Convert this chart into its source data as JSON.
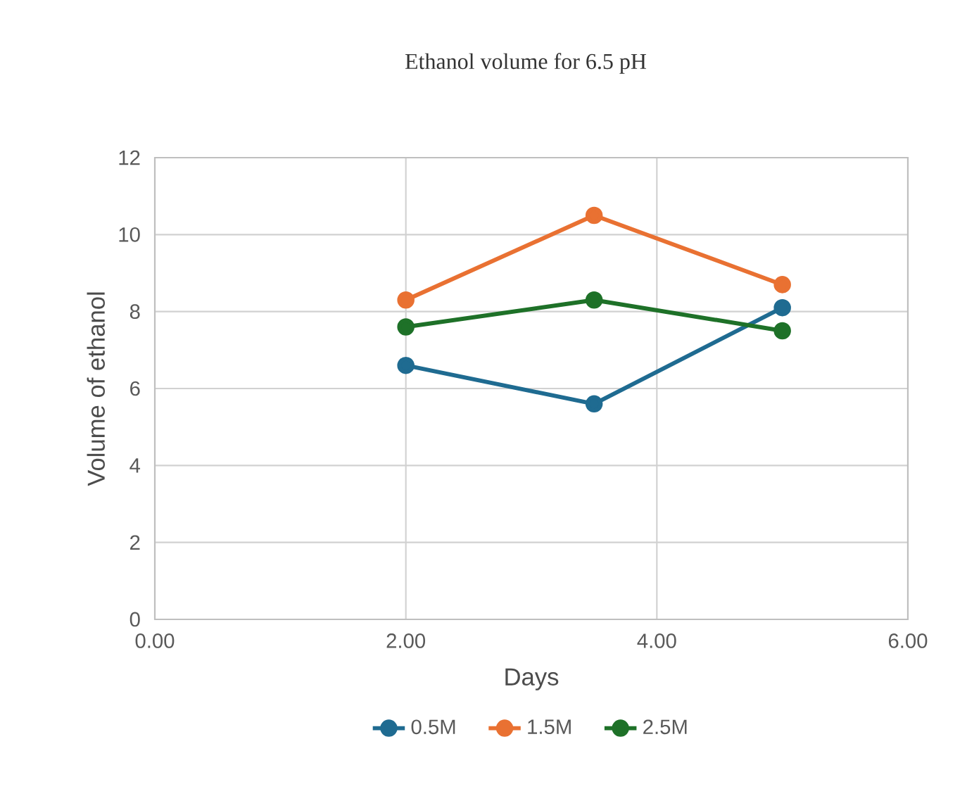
{
  "chart_data": {
    "type": "line",
    "title": "Ethanol volume for 6.5 pH",
    "xlabel": "Days",
    "ylabel": "Volume of ethanol",
    "x": [
      2,
      3.5,
      5
    ],
    "series": [
      {
        "name": "0.5M",
        "color": "#1f6b91",
        "values": [
          6.6,
          5.6,
          8.1
        ]
      },
      {
        "name": "1.5M",
        "color": "#e97132",
        "values": [
          8.3,
          10.5,
          8.7
        ]
      },
      {
        "name": "2.5M",
        "color": "#1e7128",
        "values": [
          7.6,
          8.3,
          7.5
        ]
      }
    ],
    "xlim": [
      0,
      6
    ],
    "xticks": [
      {
        "value": 0,
        "label": "0.00"
      },
      {
        "value": 2,
        "label": "2.00"
      },
      {
        "value": 4,
        "label": "4.00"
      },
      {
        "value": 6,
        "label": "6.00"
      }
    ],
    "ylim": [
      0,
      12
    ],
    "yticks": [
      0,
      2,
      4,
      6,
      8,
      10,
      12
    ],
    "grid": true,
    "legend": "bottom",
    "marker": "circle",
    "line_style": "solid"
  }
}
